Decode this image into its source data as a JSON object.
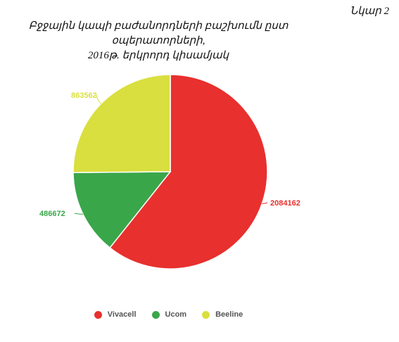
{
  "figure_label": "Նկար 2",
  "title_lines": [
    "Բջջային կապի բաժանորդների բաշխումն ըստ օպերատորների,",
    "2016թ. երկրորդ կիսամյակ"
  ],
  "colors": {
    "Vivacell": "#e8302e",
    "Ucom": "#3aa64a",
    "Beeline": "#d9df3e"
  },
  "chart_data": {
    "type": "pie",
    "title": "Բջջային կապի բաժանորդների բաշխումն ըստ օպերատորների, 2016թ. երկրորդ կիսամյակ",
    "start_angle_deg": 0,
    "direction": "clockwise",
    "labels": [
      "Vivacell",
      "Ucom",
      "Beeline"
    ],
    "values": [
      2084162,
      486672,
      863562
    ],
    "data_labels": [
      "2084162",
      "486672",
      "863562"
    ],
    "legend_placement": "bottom"
  },
  "legend": {
    "items": [
      {
        "label": "Vivacell",
        "color": "#e8302e"
      },
      {
        "label": "Ucom",
        "color": "#3aa64a"
      },
      {
        "label": "Beeline",
        "color": "#d9df3e"
      }
    ]
  }
}
